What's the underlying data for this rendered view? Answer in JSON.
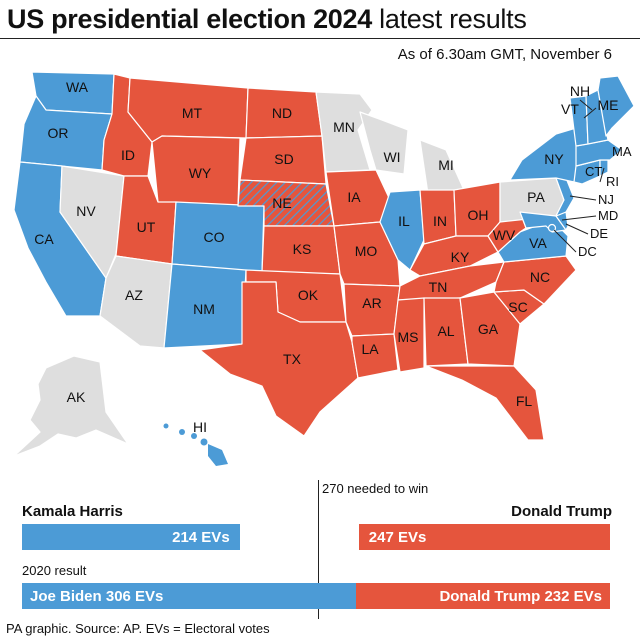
{
  "header": {
    "title_bold": "US presidential election 2024",
    "title_light": "latest results",
    "as_of": "As of 6.30am GMT, November 6"
  },
  "colors": {
    "harris": "#4C9BD6",
    "trump": "#E5553D",
    "undeclared": "#DEDEDE"
  },
  "map": {
    "states": {
      "WA": "harris",
      "OR": "harris",
      "CA": "harris",
      "NV": "undeclared",
      "ID": "trump",
      "MT": "trump",
      "WY": "trump",
      "UT": "trump",
      "AZ": "undeclared",
      "CO": "harris",
      "NM": "harris",
      "ND": "trump",
      "SD": "trump",
      "NE": "split",
      "KS": "trump",
      "OK": "trump",
      "TX": "trump",
      "MN": "undeclared",
      "IA": "trump",
      "MO": "trump",
      "AR": "trump",
      "LA": "trump",
      "WI": "undeclared",
      "IL": "harris",
      "MI": "undeclared",
      "IN": "trump",
      "OH": "trump",
      "KY": "trump",
      "TN": "trump",
      "MS": "trump",
      "AL": "trump",
      "GA": "trump",
      "FL": "trump",
      "SC": "trump",
      "NC": "trump",
      "VA": "harris",
      "WV": "trump",
      "PA": "undeclared",
      "NY": "harris",
      "VT": "harris",
      "NH": "harris",
      "ME": "harris",
      "MA": "harris",
      "RI": "harris",
      "CT": "harris",
      "NJ": "harris",
      "DE": "harris",
      "MD": "harris",
      "DC": "harris",
      "AK": "undeclared",
      "HI": "harris"
    }
  },
  "results": {
    "threshold_label": "270 needed to win",
    "harris": {
      "name": "Kamala Harris",
      "evs": 214,
      "label": "214 EVs"
    },
    "trump": {
      "name": "Donald Trump",
      "evs": 247,
      "label": "247 EVs"
    },
    "total_evs": 538
  },
  "previous": {
    "label": "2020 result",
    "biden": {
      "label": "Joe Biden 306 EVs",
      "evs": 306
    },
    "trump": {
      "label": "Donald Trump 232 EVs",
      "evs": 232
    }
  },
  "footer": {
    "source": "PA graphic. Source: AP. EVs = Electoral votes"
  }
}
